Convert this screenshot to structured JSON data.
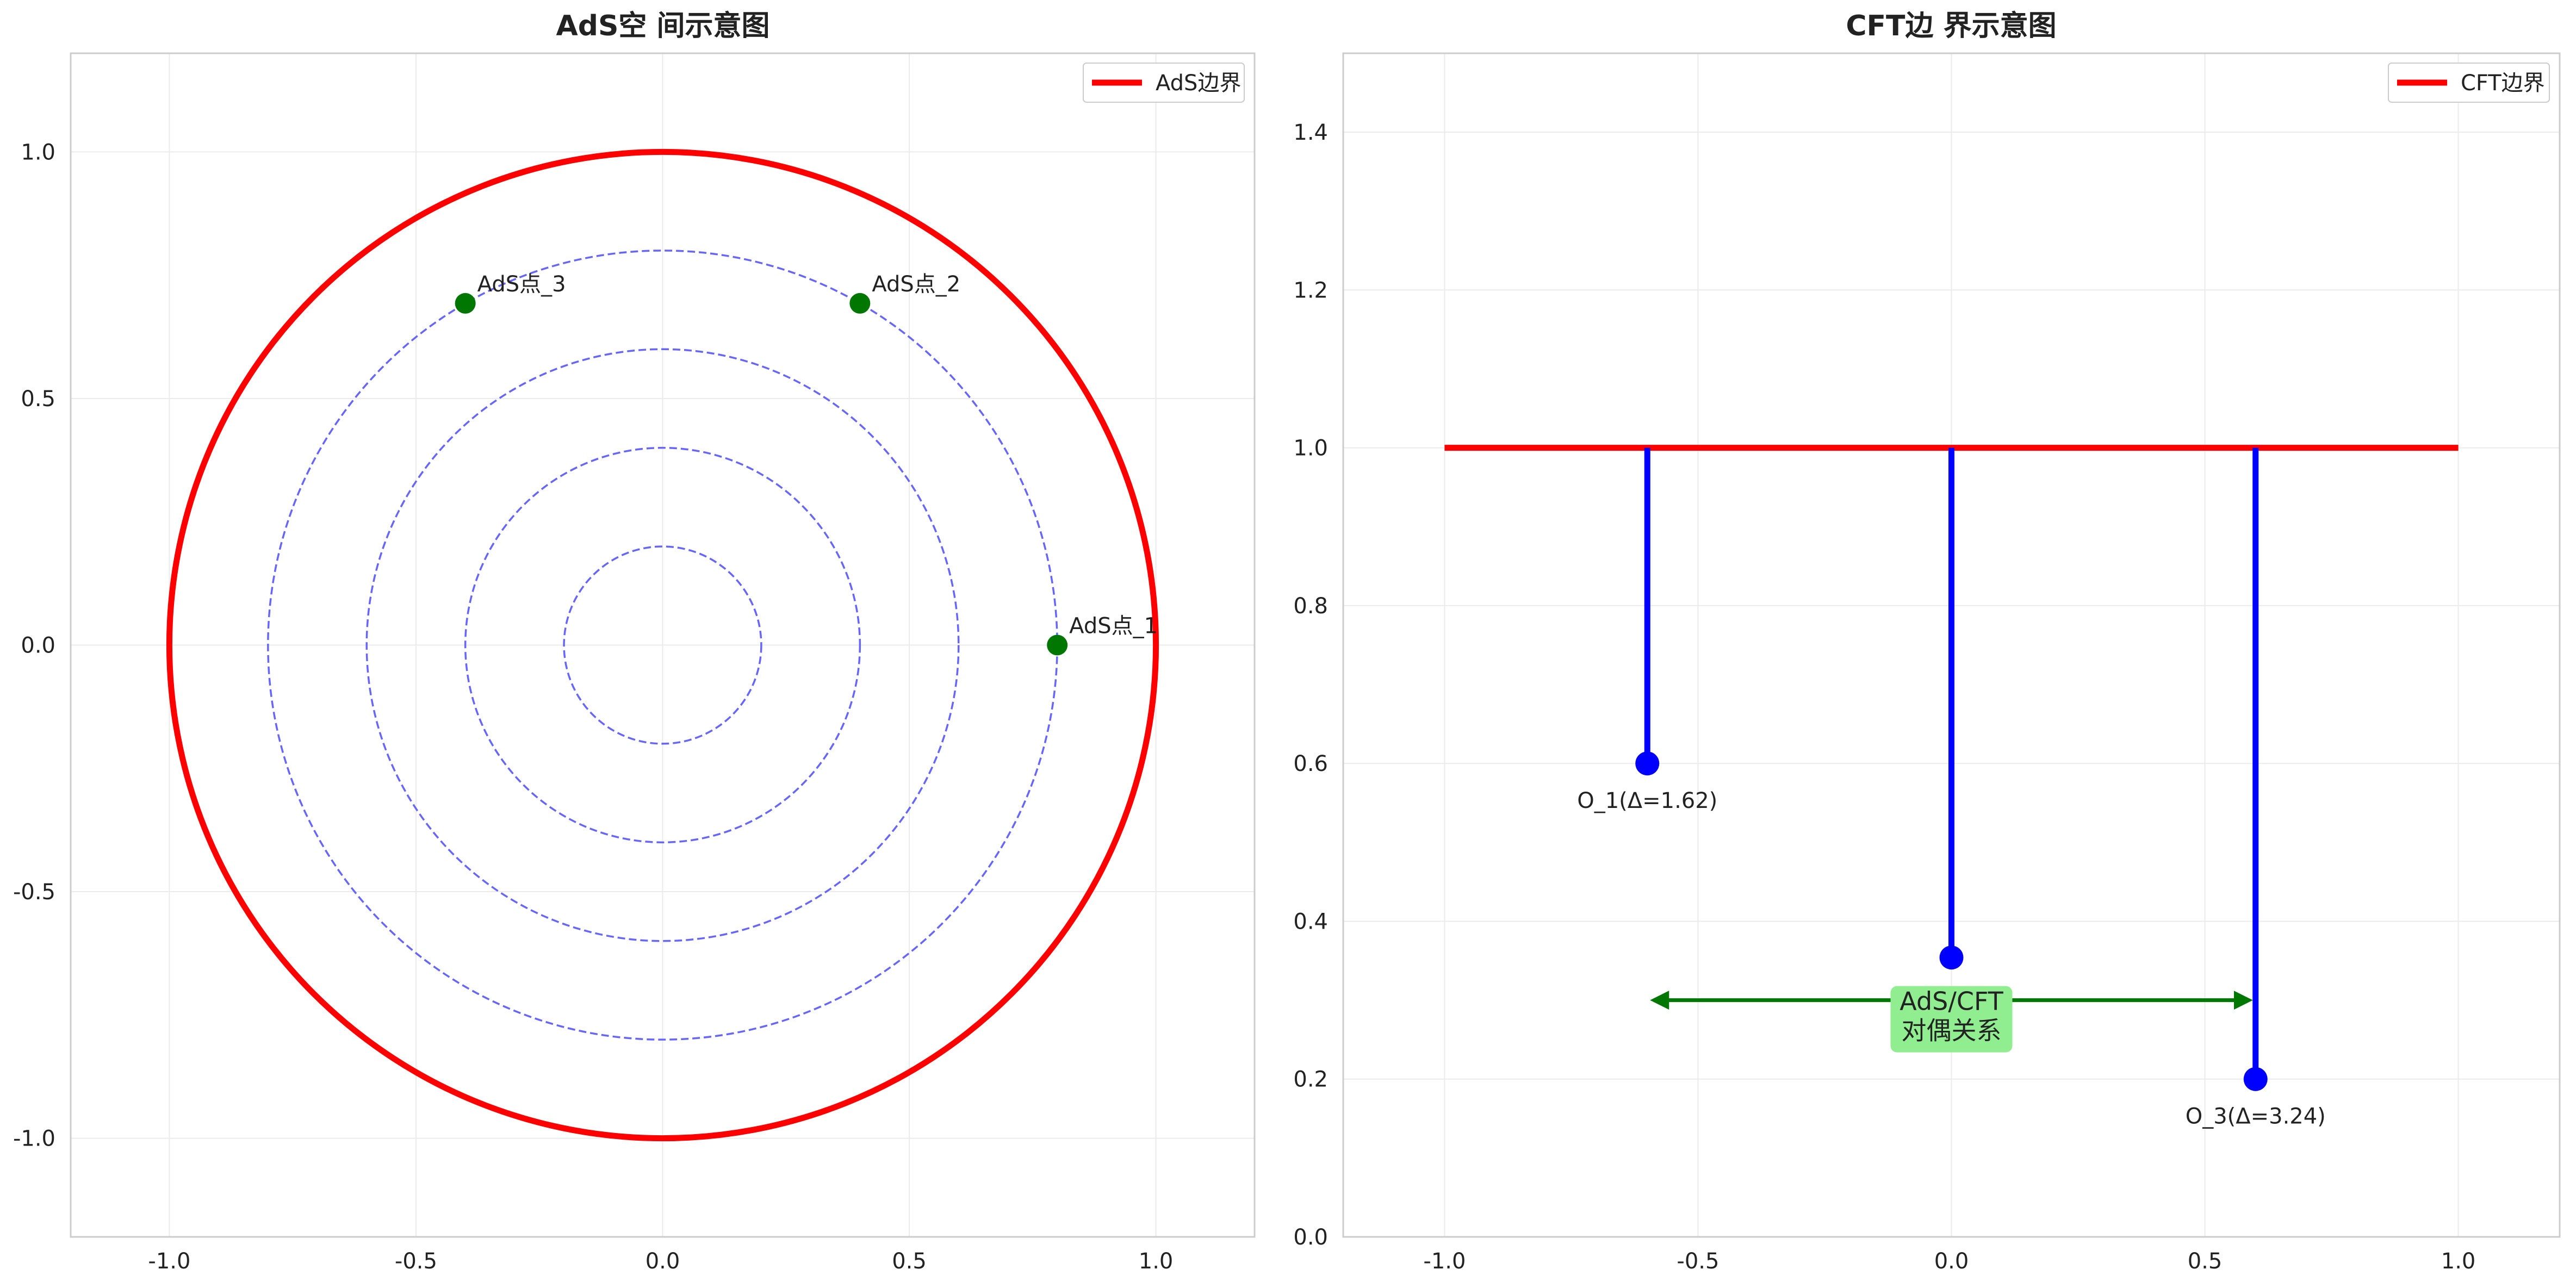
{
  "chart_data": [
    {
      "type": "scatter",
      "title": "AdS空 间示意图",
      "xlim": [
        -1.2,
        1.2
      ],
      "ylim": [
        -1.2,
        1.2
      ],
      "xticks": [
        "-1.0",
        "-0.5",
        "0.0",
        "0.5",
        "1.0"
      ],
      "yticks": [
        "-1.0",
        "-0.5",
        "0.0",
        "0.5",
        "1.0"
      ],
      "grid": true,
      "legend": {
        "placement": "top-right",
        "entries": [
          {
            "label": "AdS边界",
            "color": "#ff0000"
          }
        ]
      },
      "boundary": {
        "radius": 1.0,
        "color": "#ff0000"
      },
      "contours": {
        "radii": [
          0.2,
          0.4,
          0.6,
          0.8
        ],
        "color": "#6666ff"
      },
      "points": [
        {
          "label": "AdS点_1",
          "x": 0.8,
          "y": 0.0
        },
        {
          "label": "AdS点_2",
          "x": 0.4,
          "y": 0.693
        },
        {
          "label": "AdS点_3",
          "x": -0.4,
          "y": 0.693
        }
      ],
      "point_color": "#007700"
    },
    {
      "type": "line",
      "title": "CFT边 界示意图",
      "xlim": [
        -1.2,
        1.2
      ],
      "ylim": [
        0.0,
        1.5
      ],
      "xticks": [
        "-1.0",
        "-0.5",
        "0.0",
        "0.5",
        "1.0"
      ],
      "yticks": [
        "0.0",
        "0.2",
        "0.4",
        "0.6",
        "0.8",
        "1.0",
        "1.2",
        "1.4"
      ],
      "grid": true,
      "legend": {
        "placement": "top-right",
        "entries": [
          {
            "label": "CFT边界",
            "color": "#ff0000"
          }
        ]
      },
      "boundary": {
        "x": [
          -1.0,
          1.0
        ],
        "y": 1.0,
        "color": "#ff0000"
      },
      "operators": [
        {
          "x": -0.6,
          "y": 0.6,
          "label": "O_1(Δ=1.62)"
        },
        {
          "x": 0.0,
          "y": 0.354,
          "label": ""
        },
        {
          "x": 0.6,
          "y": 0.2,
          "label": "O_3(Δ=3.24)"
        }
      ],
      "operator_color": "#0000ff",
      "arrow": {
        "x1": -0.6,
        "x2": 0.6,
        "y": 0.3,
        "color": "#007700"
      },
      "annotation": {
        "line1": "AdS/CFT",
        "line2": "对偶关系",
        "x": 0.0,
        "y": 0.3,
        "box_color": "#90ee90"
      }
    }
  ]
}
